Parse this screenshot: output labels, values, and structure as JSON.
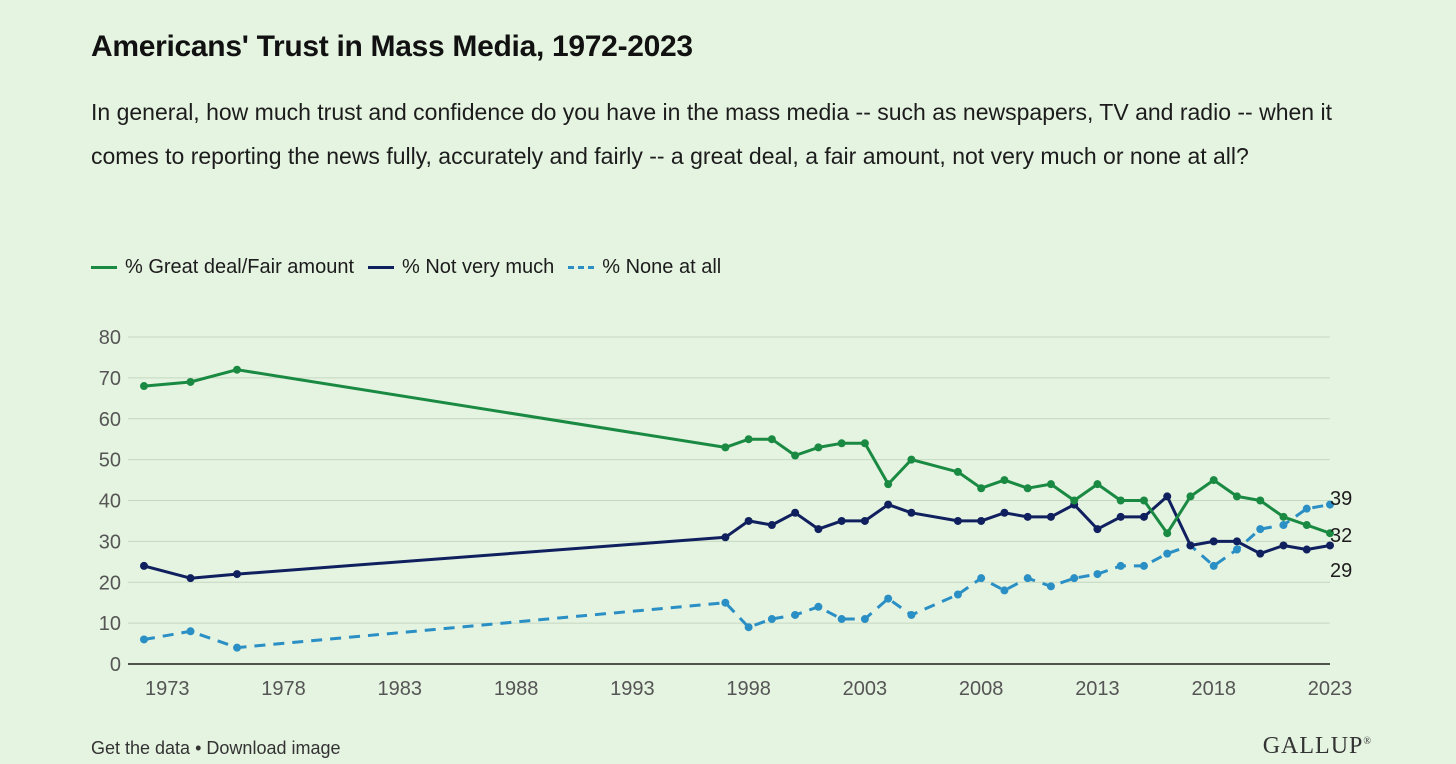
{
  "header": {
    "title": "Americans' Trust in Mass Media, 1972-2023",
    "subtitle": "In general, how much trust and confidence do you have in the mass media -- such as newspapers, TV and radio -- when it comes to reporting the news fully, accurately and fairly -- a great deal, a fair amount, not very much or none at all?"
  },
  "legend": [
    {
      "label": "% Great deal/Fair amount",
      "color": "#1a8a43",
      "style": "solid"
    },
    {
      "label": "% Not very much",
      "color": "#10205e",
      "style": "solid"
    },
    {
      "label": "% None at all",
      "color": "#2a8fc4",
      "style": "dashed"
    }
  ],
  "footer": {
    "get_data": "Get the data",
    "separator": "•",
    "download": "Download image",
    "brand": "GALLUP",
    "brand_mark": "®"
  },
  "chart_data": {
    "type": "line",
    "title": "Americans' Trust in Mass Media, 1972-2023",
    "xlabel": "",
    "ylabel": "",
    "xlim": [
      1972,
      2023
    ],
    "ylim": [
      0,
      80
    ],
    "yticks": [
      0,
      10,
      20,
      30,
      40,
      50,
      60,
      70,
      80
    ],
    "xticks": [
      1973,
      1978,
      1983,
      1988,
      1993,
      1998,
      2003,
      2008,
      2013,
      2018,
      2023
    ],
    "grid": "horizontal",
    "legend_position": "top-left",
    "x": [
      1972,
      1974,
      1976,
      1997,
      1998,
      1999,
      2000,
      2001,
      2002,
      2003,
      2004,
      2005,
      2007,
      2008,
      2009,
      2010,
      2011,
      2012,
      2013,
      2014,
      2015,
      2016,
      2017,
      2018,
      2019,
      2020,
      2021,
      2022,
      2023
    ],
    "series": [
      {
        "name": "% Great deal/Fair amount",
        "color": "#1a8a43",
        "style": "solid",
        "values": [
          68,
          69,
          72,
          53,
          55,
          55,
          51,
          53,
          54,
          54,
          44,
          50,
          47,
          43,
          45,
          43,
          44,
          40,
          44,
          40,
          40,
          32,
          41,
          45,
          41,
          40,
          36,
          34,
          32
        ],
        "end_label": "32"
      },
      {
        "name": "% Not very much",
        "color": "#10205e",
        "style": "solid",
        "values": [
          24,
          21,
          22,
          31,
          35,
          34,
          37,
          33,
          35,
          35,
          39,
          37,
          35,
          35,
          37,
          36,
          36,
          39,
          33,
          36,
          36,
          41,
          29,
          30,
          30,
          27,
          29,
          28,
          29
        ],
        "end_label": "29"
      },
      {
        "name": "% None at all",
        "color": "#2a8fc4",
        "style": "dashed",
        "values": [
          6,
          8,
          4,
          15,
          9,
          11,
          12,
          14,
          11,
          11,
          16,
          12,
          17,
          21,
          18,
          21,
          19,
          21,
          22,
          24,
          24,
          27,
          29,
          24,
          28,
          33,
          34,
          38,
          39
        ],
        "end_label": "39"
      }
    ]
  }
}
